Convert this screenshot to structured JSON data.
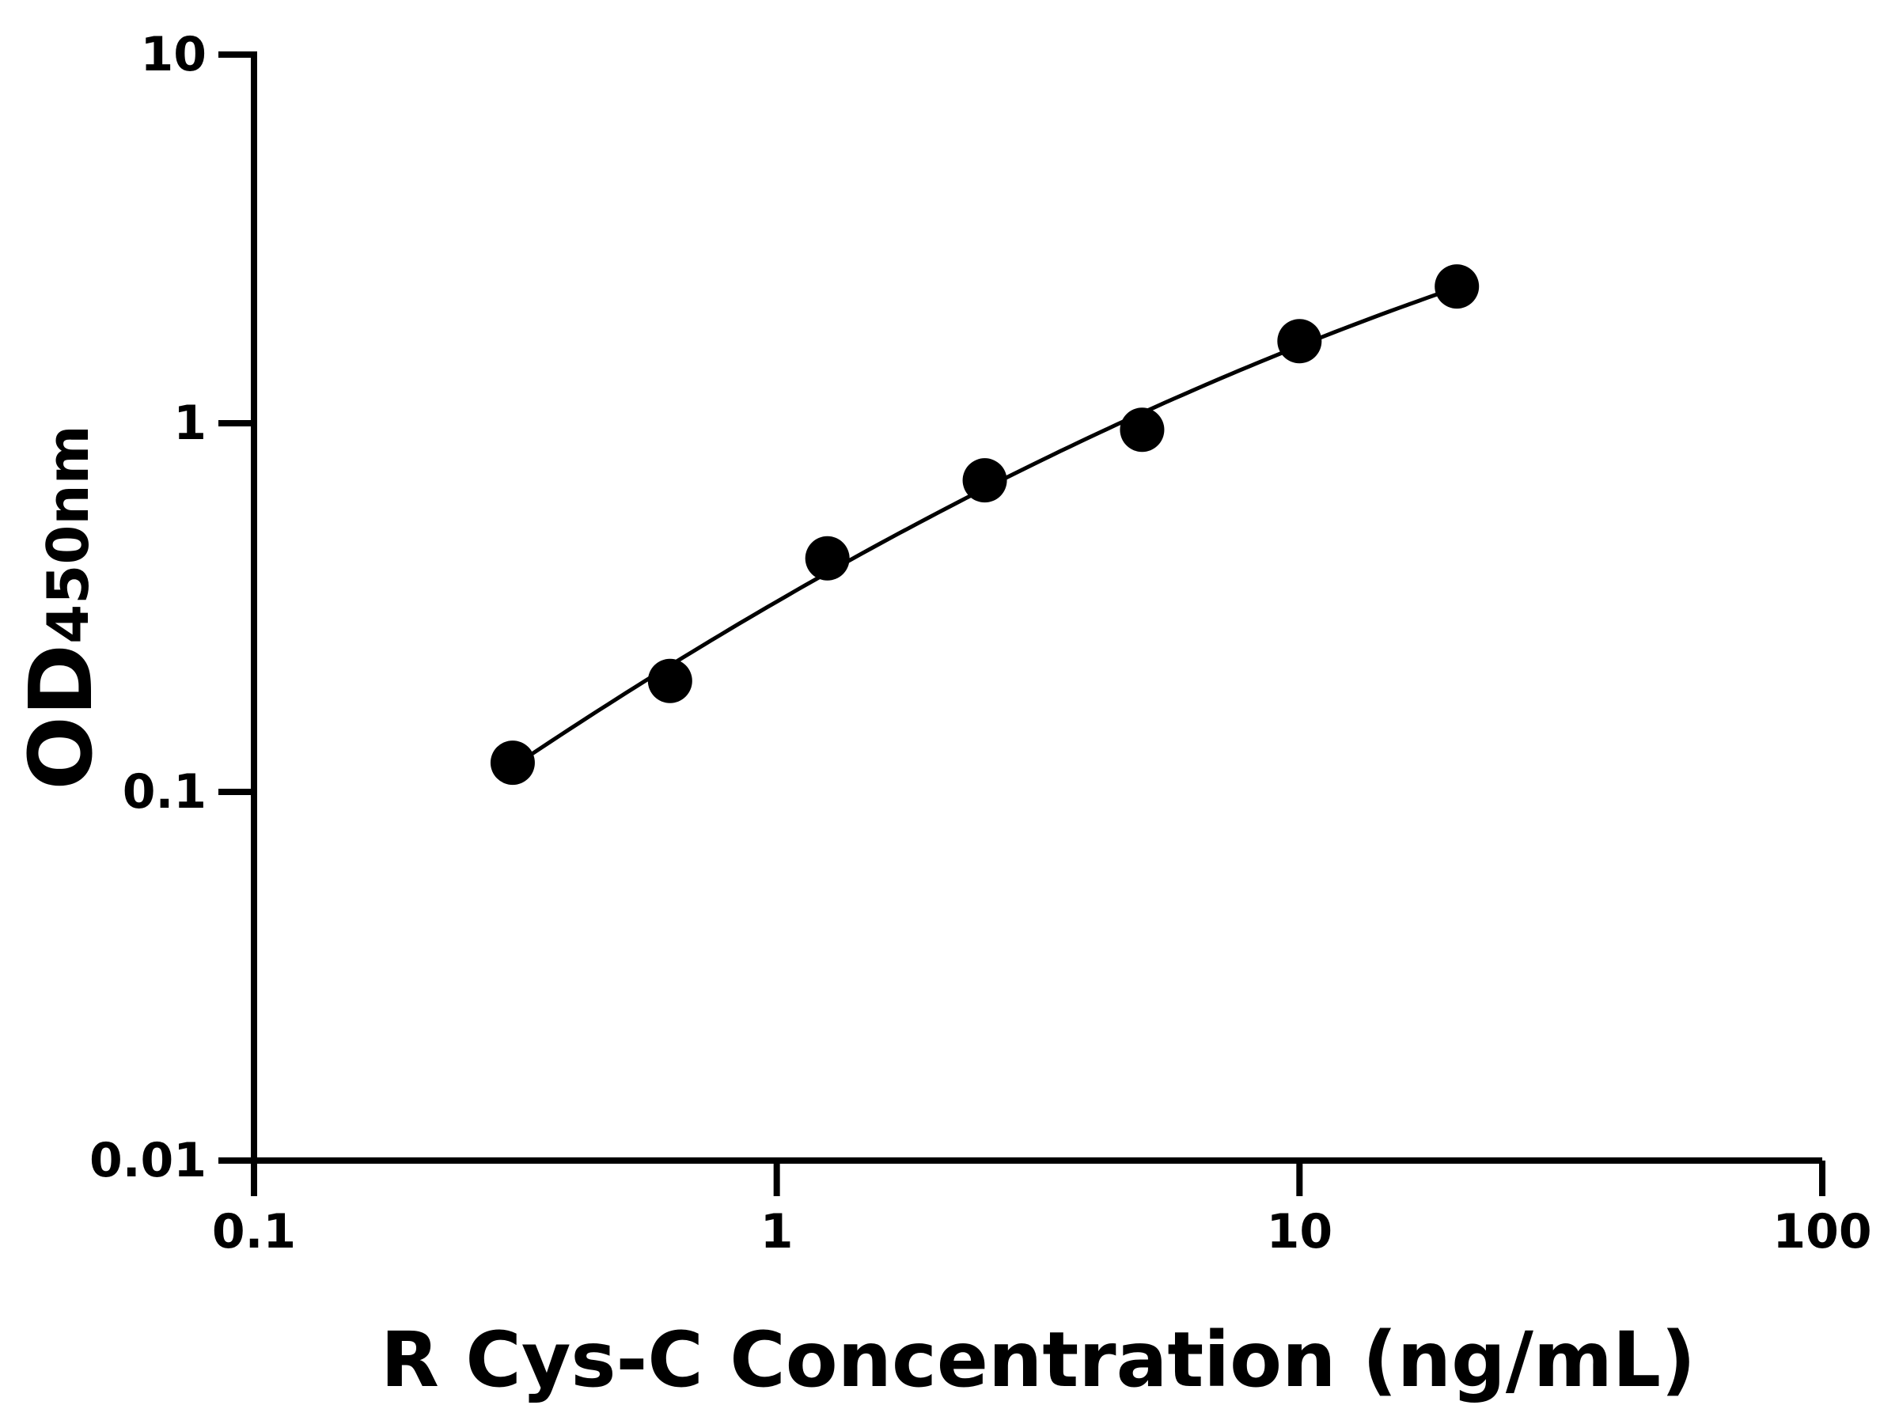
{
  "chart_data": {
    "type": "scatter",
    "xlabel": "R Cys-C Concentration (ng/mL)",
    "ylabel_main": "OD",
    "ylabel_sub": "450nm",
    "xscale": "log",
    "yscale": "log",
    "xlim": [
      0.1,
      100
    ],
    "ylim": [
      0.01,
      10
    ],
    "xticks": [
      "0.1",
      "1",
      "10",
      "100"
    ],
    "yticks": [
      "0.01",
      "0.1",
      "1",
      "10"
    ],
    "grid": false,
    "fit_curve": true,
    "points": [
      {
        "x": 0.3125,
        "y": 0.12
      },
      {
        "x": 0.625,
        "y": 0.2
      },
      {
        "x": 1.25,
        "y": 0.43
      },
      {
        "x": 2.5,
        "y": 0.7
      },
      {
        "x": 5,
        "y": 0.96
      },
      {
        "x": 10,
        "y": 1.67
      },
      {
        "x": 20,
        "y": 2.35
      }
    ],
    "colors": {
      "marker": "#000000",
      "line": "#000000",
      "axis": "#000000"
    }
  }
}
